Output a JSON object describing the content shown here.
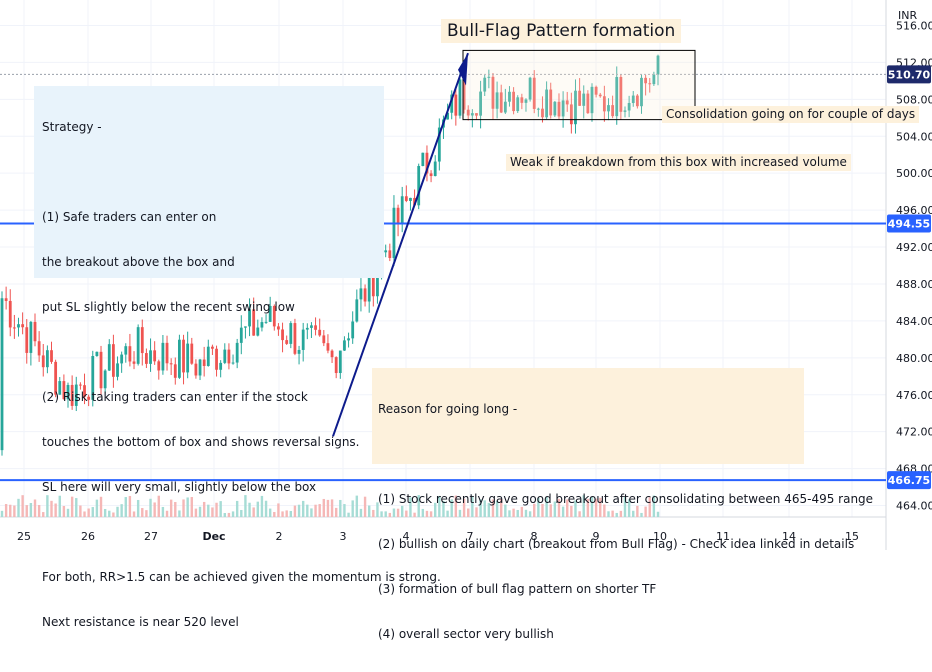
{
  "chart_data": {
    "type": "candlestick",
    "title": "Bull-Flag Pattern formation",
    "currency": "INR",
    "ylim": [
      462,
      518
    ],
    "y_ticks": [
      "464.00",
      "468.00",
      "472.00",
      "476.00",
      "480.00",
      "484.00",
      "488.00",
      "492.00",
      "496.00",
      "500.00",
      "504.00",
      "508.00",
      "512.00",
      "516.00"
    ],
    "x_ticks": [
      "25",
      "26",
      "27",
      "Dec",
      "2",
      "3",
      "4",
      "7",
      "8",
      "9",
      "10",
      "11",
      "14",
      "15"
    ],
    "price_labels": {
      "current": "510.70",
      "resistance": "494.55",
      "support": "466.75"
    },
    "horizontal_levels": [
      494.55,
      466.75,
      510.7
    ],
    "consolidation_box": {
      "price_top": 513.3,
      "price_bottom": 505.8
    },
    "session_closes": [
      {
        "session": "25",
        "close": 486.5
      },
      {
        "session": "26",
        "close": 476.2
      },
      {
        "session": "27",
        "close": 481.0
      },
      {
        "session": "Dec",
        "close": 479.3
      },
      {
        "session": "2",
        "close": 484.2
      },
      {
        "session": "3",
        "close": 479.8
      },
      {
        "session": "4",
        "close": 493.8
      },
      {
        "session": "7",
        "close": 508.5
      },
      {
        "session": "8",
        "close": 509.0
      },
      {
        "session": "9",
        "close": 507.2
      },
      {
        "session": "10",
        "close": 510.7
      }
    ],
    "candle_color_up": "#26a69a",
    "candle_color_down": "#ef5350"
  },
  "colors": {
    "level_line": "#2962ff",
    "arrow": "#0d1b8c",
    "note_bg": "#e8f3fb",
    "annotation_bg": "#fdf1dc"
  },
  "annotations": {
    "strategy": [
      "Strategy -",
      "",
      "(1) Safe traders can enter on",
      "the breakout above the box and",
      "put SL slightly below the recent swing low",
      "",
      "(2) Risk taking traders can enter if the stock",
      "touches the bottom of box and shows reversal signs.",
      "SL here will very small, slightly below the box",
      "",
      "For both, RR>1.5 can be achieved given the momentum is strong.",
      "Next resistance is near 520 level"
    ],
    "consolidation": "Consolidation going on for couple of days",
    "weak": "Weak if breakdown from this box with increased volume",
    "reason": [
      "Reason for going long -",
      "",
      "(1) Stock recently gave good breakout after consolidating between 465-495 range",
      "(2) bullish on daily chart (breakout from Bull Flag) - Check idea linked in details",
      "(3) formation of bull flag pattern on shorter TF",
      "(4) overall sector very bullish"
    ]
  }
}
